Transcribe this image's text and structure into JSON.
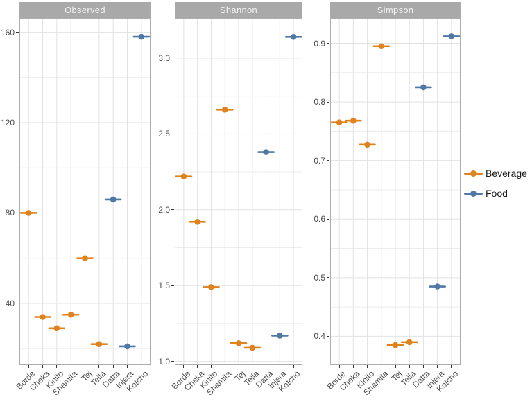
{
  "chart_data": {
    "type": "scatter",
    "style": "pointrange-horizontal",
    "faceted": true,
    "categories": [
      "Borde",
      "Cheka",
      "Kinito",
      "Shamita",
      "Tej",
      "Tella",
      "Datta",
      "Injera",
      "Kotcho"
    ],
    "points": [
      {
        "category": "Borde",
        "group": "Beverage",
        "observed": 80,
        "shannon": 2.22,
        "simpson": 0.765
      },
      {
        "category": "Cheka",
        "group": "Beverage",
        "observed": 34,
        "shannon": 1.92,
        "simpson": 0.768
      },
      {
        "category": "Kinito",
        "group": "Beverage",
        "observed": 29,
        "shannon": 1.49,
        "simpson": 0.727
      },
      {
        "category": "Shamita",
        "group": "Beverage",
        "observed": 35,
        "shannon": 2.66,
        "simpson": 0.895
      },
      {
        "category": "Tej",
        "group": "Beverage",
        "observed": 60,
        "shannon": 1.12,
        "simpson": 0.385
      },
      {
        "category": "Tella",
        "group": "Beverage",
        "observed": 22,
        "shannon": 1.09,
        "simpson": 0.39
      },
      {
        "category": "Datta",
        "group": "Food",
        "observed": 86,
        "shannon": 2.38,
        "simpson": 0.825
      },
      {
        "category": "Injera",
        "group": "Food",
        "observed": 21,
        "shannon": 1.17,
        "simpson": 0.485
      },
      {
        "category": "Kotcho",
        "group": "Food",
        "observed": 158,
        "shannon": 3.14,
        "simpson": 0.912
      }
    ],
    "facets": [
      {
        "title": "Observed",
        "key": "observed",
        "ylim": [
          13,
          166
        ],
        "yticks": [
          {
            "value": 40,
            "label": "40"
          },
          {
            "value": 80,
            "label": "80"
          },
          {
            "value": 120,
            "label": "120"
          },
          {
            "value": 160,
            "label": "160"
          }
        ],
        "yminor": [
          20,
          60,
          100,
          140
        ]
      },
      {
        "title": "Shannon",
        "key": "shannon",
        "ylim": [
          0.98,
          3.26
        ],
        "yticks": [
          {
            "value": 1.0,
            "label": "1.0"
          },
          {
            "value": 1.5,
            "label": "1.5"
          },
          {
            "value": 2.0,
            "label": "2.0"
          },
          {
            "value": 2.5,
            "label": "2.5"
          },
          {
            "value": 3.0,
            "label": "3.0"
          }
        ],
        "yminor": [
          1.25,
          1.75,
          2.25,
          2.75
        ]
      },
      {
        "title": "Simpson",
        "key": "simpson",
        "ylim": [
          0.352,
          0.942
        ],
        "yticks": [
          {
            "value": 0.4,
            "label": "0.4"
          },
          {
            "value": 0.5,
            "label": "0.5"
          },
          {
            "value": 0.6,
            "label": "0.6"
          },
          {
            "value": 0.7,
            "label": "0.7"
          },
          {
            "value": 0.8,
            "label": "0.8"
          },
          {
            "value": 0.9,
            "label": "0.9"
          }
        ],
        "yminor": [
          0.45,
          0.55,
          0.65,
          0.75,
          0.85
        ]
      }
    ],
    "legend": {
      "position": "right",
      "entries": [
        {
          "label": "Beverage",
          "color": "#e0821e"
        },
        {
          "label": "Food",
          "color": "#4e79a7"
        }
      ]
    },
    "grid": "on",
    "xlabel": "",
    "ylabel": ""
  },
  "colors": {
    "strip_background": "#a9a9a9",
    "strip_text": "#f2f2f2",
    "panel_border": "#adadad",
    "grid_major": "#e2e2e2",
    "grid_minor": "#ececec",
    "axis_text": "#4d4d4d",
    "tick_mark": "#333333",
    "beverage": "#e0821e",
    "food": "#4e79a7"
  }
}
